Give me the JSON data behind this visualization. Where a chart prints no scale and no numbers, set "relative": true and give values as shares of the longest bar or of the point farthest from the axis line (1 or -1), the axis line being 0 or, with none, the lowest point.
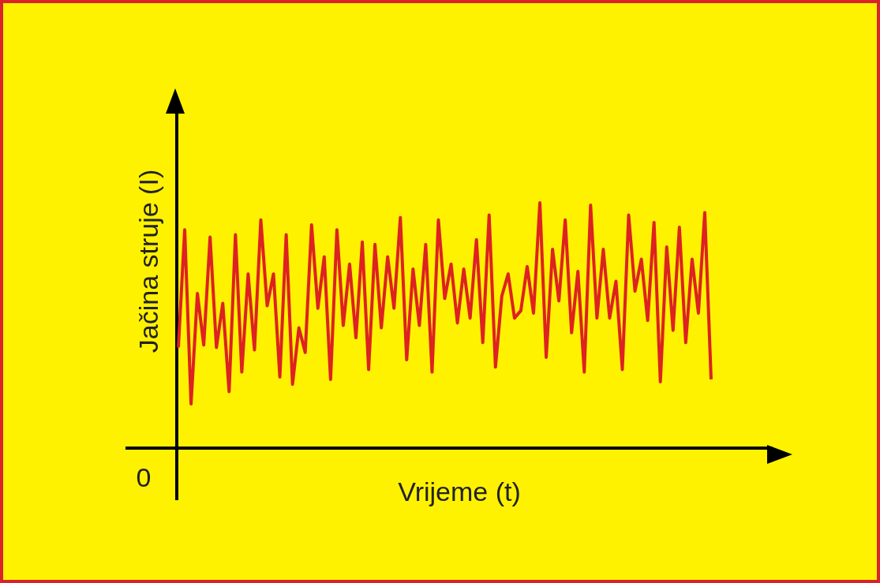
{
  "chart_data": {
    "type": "line",
    "xlabel": "Vrijeme (t)",
    "ylabel": "Jačina struje (I)",
    "relative": true,
    "marker": "none",
    "line_style": "solid",
    "annotations": [
      "0"
    ],
    "categories": [
      null,
      null,
      null,
      null,
      null,
      null,
      null,
      null,
      null,
      null,
      null,
      null,
      null,
      null,
      null,
      null,
      null,
      null,
      null,
      null,
      null,
      null,
      null,
      null,
      null,
      null,
      null,
      null,
      null,
      null,
      null,
      null,
      null,
      null,
      null,
      null,
      null,
      null,
      null,
      null,
      null,
      null,
      null,
      null,
      null,
      null,
      null,
      null,
      null,
      null,
      null,
      null,
      null,
      null,
      null,
      null,
      null,
      null,
      null,
      null,
      null,
      null,
      null,
      null,
      null,
      null,
      null,
      null,
      null,
      null,
      null,
      null,
      null,
      null,
      null,
      null,
      null,
      null,
      null,
      null,
      null,
      null,
      null,
      null,
      null
    ],
    "series": [
      {
        "color": "#dd2222",
        "values": [
          0.41,
          0.89,
          0.18,
          0.63,
          0.42,
          0.86,
          0.41,
          0.59,
          0.23,
          0.87,
          0.31,
          0.71,
          0.4,
          0.93,
          0.58,
          0.71,
          0.29,
          0.87,
          0.26,
          0.49,
          0.39,
          0.91,
          0.57,
          0.78,
          0.28,
          0.89,
          0.5,
          0.75,
          0.45,
          0.84,
          0.32,
          0.83,
          0.49,
          0.78,
          0.57,
          0.94,
          0.36,
          0.73,
          0.5,
          0.83,
          0.31,
          0.93,
          0.61,
          0.75,
          0.51,
          0.73,
          0.53,
          0.85,
          0.43,
          0.95,
          0.33,
          0.62,
          0.71,
          0.53,
          0.56,
          0.74,
          0.55,
          1,
          0.37,
          0.81,
          0.6,
          0.93,
          0.47,
          0.72,
          0.31,
          0.99,
          0.53,
          0.81,
          0.53,
          0.68,
          0.32,
          0.95,
          0.64,
          0.77,
          0.52,
          0.92,
          0.27,
          0.82,
          0.48,
          0.9,
          0.43,
          0.77,
          0.55,
          0.96,
          0.28
        ]
      }
    ]
  }
}
